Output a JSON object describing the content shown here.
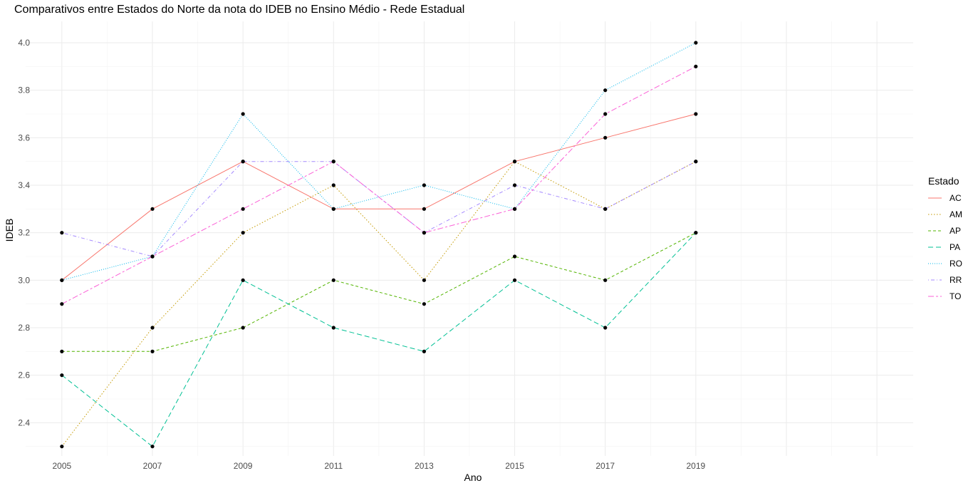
{
  "chart_data": {
    "type": "line",
    "title": "Comparativos entre Estados do Norte da nota do IDEB no Ensino Médio - Rede Estadual",
    "xlabel": "Ano",
    "ylabel": "IDEB",
    "x": [
      2005,
      2007,
      2009,
      2011,
      2013,
      2015,
      2017,
      2019
    ],
    "x_ticks": [
      "2005",
      "2007",
      "2009",
      "2011",
      "2013",
      "2015",
      "2017",
      "2019"
    ],
    "y_ticks": [
      "2.4",
      "2.6",
      "2.8",
      "3.0",
      "3.2",
      "3.4",
      "3.6",
      "3.8",
      "4.0"
    ],
    "xlim": [
      2004.2,
      2023.8
    ],
    "ylim": [
      2.26,
      4.09
    ],
    "grid": true,
    "legend": {
      "title": "Estado",
      "placement": "right"
    },
    "series": [
      {
        "name": "AC",
        "color": "#F8766D",
        "dash": "solid",
        "values": [
          3.0,
          3.3,
          3.5,
          3.3,
          3.3,
          3.5,
          3.6,
          3.7
        ]
      },
      {
        "name": "AM",
        "color": "#C49A00",
        "dash": "dotted",
        "values": [
          2.3,
          2.8,
          3.2,
          3.4,
          3.0,
          3.5,
          3.3,
          3.5
        ]
      },
      {
        "name": "AP",
        "color": "#53B400",
        "dash": "dashed",
        "values": [
          2.7,
          2.7,
          2.8,
          3.0,
          2.9,
          3.1,
          3.0,
          3.2
        ]
      },
      {
        "name": "PA",
        "color": "#00C094",
        "dash": "longdash",
        "values": [
          2.6,
          2.3,
          3.0,
          2.8,
          2.7,
          3.0,
          2.8,
          3.2
        ]
      },
      {
        "name": "RO",
        "color": "#00B6EB",
        "dash": "dotted-fine",
        "values": [
          3.0,
          3.1,
          3.7,
          3.3,
          3.4,
          3.3,
          3.8,
          4.0
        ]
      },
      {
        "name": "RR",
        "color": "#A58AFF",
        "dash": "dotdash",
        "values": [
          3.2,
          3.1,
          3.5,
          3.5,
          3.2,
          3.4,
          3.3,
          3.5
        ]
      },
      {
        "name": "TO",
        "color": "#FB61D7",
        "dash": "twodash",
        "values": [
          2.9,
          3.1,
          3.3,
          3.5,
          3.2,
          3.3,
          3.7,
          3.9
        ]
      }
    ]
  }
}
